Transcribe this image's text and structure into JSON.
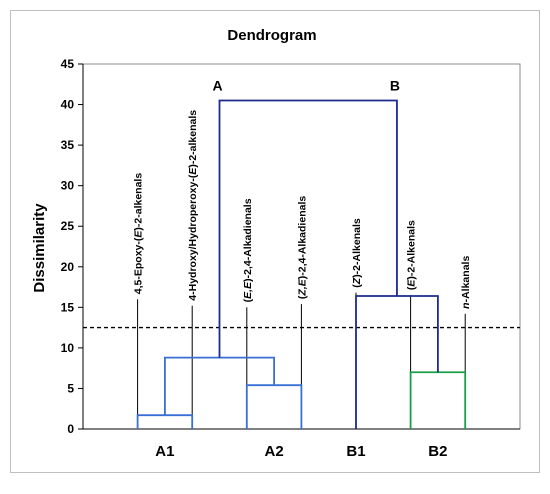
{
  "chart_data": {
    "type": "dendrogram",
    "title": "Dendrogram",
    "xlabel": "",
    "ylabel": "Dissimilarity",
    "ylim": [
      0,
      45
    ],
    "yticks": [
      0,
      5,
      10,
      15,
      20,
      25,
      30,
      35,
      40,
      45
    ],
    "grid": false,
    "legend": null,
    "cut_line": 12.5,
    "leaves": [
      {
        "label_prefix": "4,5-Epoxy-(",
        "label_italic": "E",
        "label_suffix": ")-2-alkenals",
        "x": 1
      },
      {
        "label_prefix": "4-Hydroxy/Hydroperoxy-(",
        "label_italic": "E",
        "label_suffix": ")-2-alkenals",
        "x": 2
      },
      {
        "label_prefix": "(",
        "label_italic": "E,E",
        "label_suffix": ")-2,4-Alkadienals",
        "x": 3
      },
      {
        "label_prefix": "(",
        "label_italic": "Z,E",
        "label_suffix": ")-2,4-Alkadienals",
        "x": 4
      },
      {
        "label_prefix": "(",
        "label_italic": "Z",
        "label_suffix": ")-2-Alkenals",
        "x": 5
      },
      {
        "label_prefix": "(",
        "label_italic": "E",
        "label_suffix": ")-2-Alkenals",
        "x": 6
      },
      {
        "label_prefix": "",
        "label_italic": "n",
        "label_suffix": "-Alkanals",
        "x": 7
      }
    ],
    "merges": [
      {
        "left": 1,
        "right": 2,
        "height": 1.7,
        "color": "#3a6fd6"
      },
      {
        "left": 3,
        "right": 4,
        "height": 5.4,
        "color": "#3a6fd6"
      },
      {
        "left": 1.5,
        "right": 3.5,
        "height": 8.8,
        "color": "#3a6fd6"
      },
      {
        "left": 6,
        "right": 7,
        "height": 7.0,
        "color": "#1a9e4a"
      },
      {
        "left": 5,
        "right": 6.5,
        "height": 16.4,
        "color": "#1c2a8c"
      },
      {
        "left": 2.5,
        "right": 5.75,
        "height": 40.5,
        "color": "#1c2a8c"
      }
    ],
    "cluster_labels": [
      {
        "text": "A",
        "x": 2.5,
        "height": 40.5
      },
      {
        "text": "B",
        "x": 5.75,
        "height": 40.5
      }
    ],
    "group_labels": [
      {
        "text": "A1",
        "x": 1.5
      },
      {
        "text": "A2",
        "x": 3.5
      },
      {
        "text": "B1",
        "x": 5
      },
      {
        "text": "B2",
        "x": 6.5
      }
    ],
    "colors": {
      "axis": "#000000",
      "plot_border": "#8c8c8c",
      "cut_line": "#000000",
      "leaf_stem": "#000000"
    }
  }
}
